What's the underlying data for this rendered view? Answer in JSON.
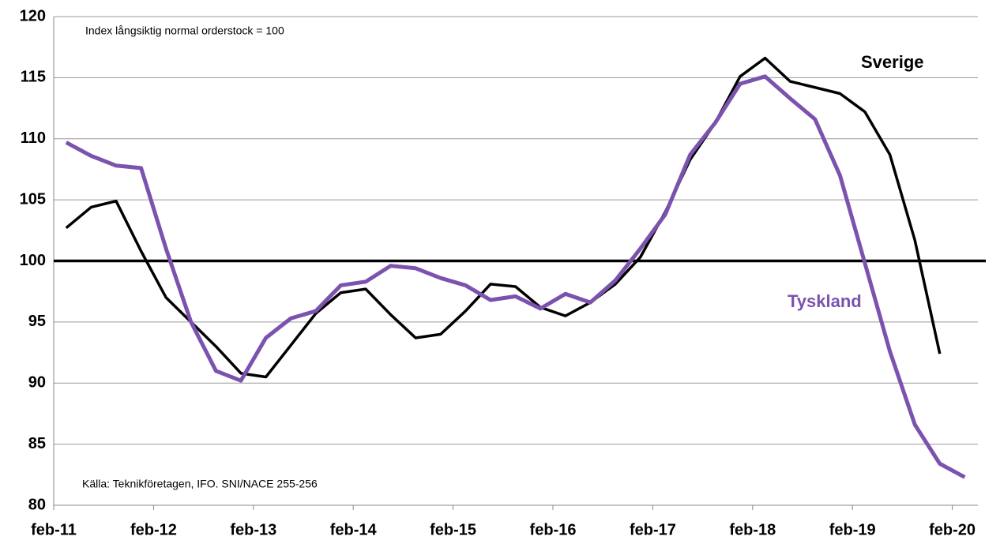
{
  "chart_data": {
    "type": "line",
    "annotations": [
      "Index långsiktig normal orderstock = 100",
      "Källa: Teknikföretagen,  IFO. SNI/NACE 255-256"
    ],
    "categories": [
      "feb-11",
      null,
      null,
      null,
      "feb-12",
      null,
      null,
      null,
      "feb-13",
      null,
      null,
      null,
      "feb-14",
      null,
      null,
      null,
      "feb-15",
      null,
      null,
      null,
      "feb-16",
      null,
      null,
      null,
      "feb-17",
      null,
      null,
      null,
      "feb-18",
      null,
      null,
      null,
      "feb-19",
      null,
      null,
      null,
      "feb-20"
    ],
    "series": [
      {
        "name": "Sverige",
        "color": "#000000",
        "values": [
          102.7,
          104.4,
          104.9,
          100.8,
          97.0,
          95.0,
          93.0,
          90.8,
          90.5,
          93.1,
          95.7,
          97.4,
          97.7,
          95.6,
          93.7,
          94.0,
          95.9,
          98.1,
          97.9,
          96.2,
          95.5,
          96.6,
          98.1,
          100.3,
          104.0,
          108.3,
          111.3,
          115.1,
          116.6,
          114.7,
          114.2,
          113.7,
          112.2,
          108.7,
          101.7,
          92.4,
          null
        ]
      },
      {
        "name": "Tyskland",
        "color": "#7b52ae",
        "values": [
          109.7,
          108.6,
          107.8,
          107.6,
          101.0,
          95.0,
          91.0,
          90.2,
          93.7,
          95.3,
          95.9,
          98.0,
          98.3,
          99.6,
          99.4,
          98.6,
          98.0,
          96.8,
          97.1,
          96.1,
          97.3,
          96.6,
          98.4,
          101.0,
          103.8,
          108.7,
          111.3,
          114.5,
          115.1,
          113.3,
          111.6,
          107.0,
          99.8,
          92.6,
          86.6,
          83.4,
          82.3
        ]
      }
    ],
    "reference_line": 100,
    "ylim": [
      80,
      120
    ],
    "yticks": [
      80,
      85,
      90,
      95,
      100,
      105,
      110,
      115,
      120
    ],
    "grid": true
  }
}
